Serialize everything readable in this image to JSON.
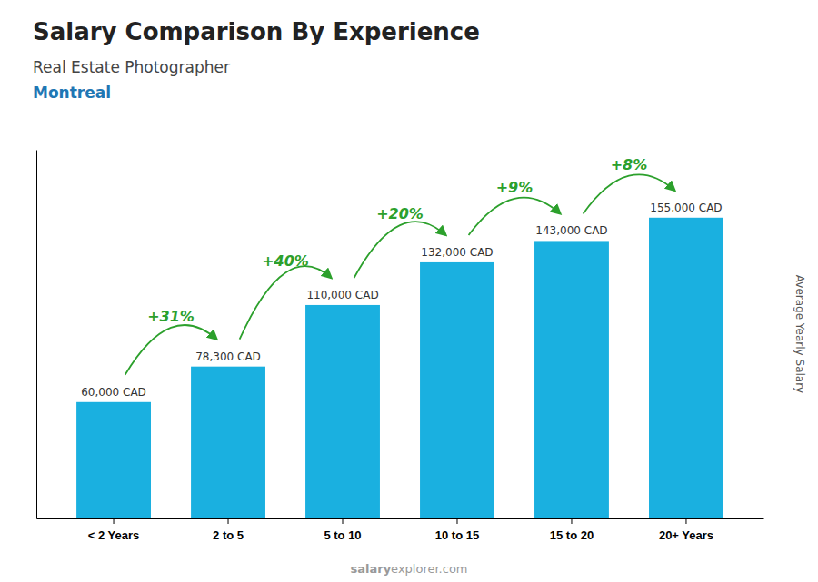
{
  "chart_data": {
    "type": "bar",
    "title": "Salary Comparison By Experience",
    "subtitle": "Real Estate Photographer",
    "annotations": [
      "Montreal"
    ],
    "change_labels": [
      "+31%",
      "+40%",
      "+20%",
      "+9%",
      "+8%"
    ],
    "watermark": [
      "salary",
      "explorer.com"
    ],
    "ylabel": "Average Yearly Salary",
    "categories": [
      "< 2 Years",
      "2 to 5",
      "5 to 10",
      "10 to 15",
      "15 to 20",
      "20+ Years"
    ],
    "values": [
      60000,
      78300,
      110000,
      132000,
      143000,
      155000
    ],
    "value_labels": [
      "60,000 CAD",
      "78,300 CAD",
      "110,000 CAD",
      "132,000 CAD",
      "143,000 CAD",
      "155,000 CAD"
    ],
    "data_labels": true,
    "color": "#1ab0e0",
    "ylim": [
      0,
      190000
    ],
    "grid": false,
    "tick_labels": "x"
  }
}
